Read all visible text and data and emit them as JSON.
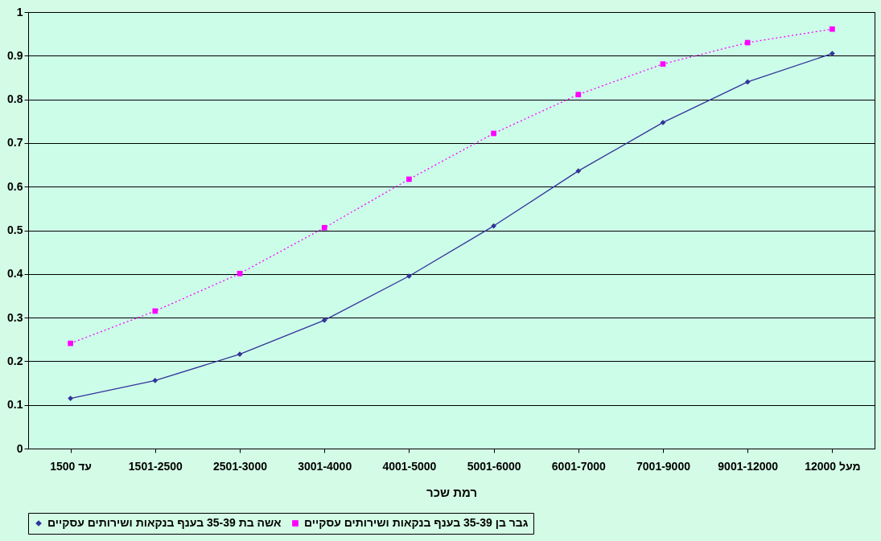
{
  "chart_data": {
    "type": "line",
    "xlabel": "רמת שכר",
    "categories": [
      "עד 1500",
      "1501-2500",
      "2501-3000",
      "3001-4000",
      "4001-5000",
      "5001-6000",
      "6001-7000",
      "7001-9000",
      "9001-12000",
      "מעל 12000"
    ],
    "series": [
      {
        "name": "אשה בת 35-39 בענף בנקאות ושירותים עסקיים",
        "color": "#333399",
        "marker": "diamond",
        "line_style": "solid",
        "values": [
          0.115,
          0.156,
          0.216,
          0.294,
          0.395,
          0.51,
          0.636,
          0.747,
          0.84,
          0.905
        ]
      },
      {
        "name": "גבר בן 35-39 בענף בנקאות ושירותים עסקיים",
        "color": "#ff00ff",
        "marker": "square",
        "line_style": "dotted",
        "values": [
          0.241,
          0.315,
          0.401,
          0.506,
          0.617,
          0.722,
          0.811,
          0.881,
          0.93,
          0.961
        ]
      }
    ],
    "ylim": [
      0,
      1
    ],
    "yticks": [
      0,
      0.1,
      0.2,
      0.3,
      0.4,
      0.5,
      0.6,
      0.7,
      0.8,
      0.9,
      1
    ],
    "grid": "y",
    "legend": "bottom"
  }
}
